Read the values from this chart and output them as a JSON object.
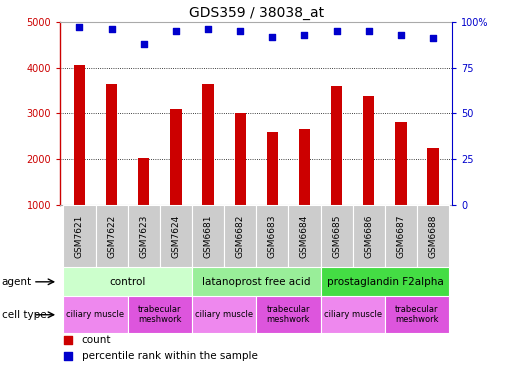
{
  "title": "GDS359 / 38038_at",
  "samples": [
    "GSM7621",
    "GSM7622",
    "GSM7623",
    "GSM7624",
    "GSM6681",
    "GSM6682",
    "GSM6683",
    "GSM6684",
    "GSM6685",
    "GSM6686",
    "GSM6687",
    "GSM6688"
  ],
  "counts": [
    4050,
    3650,
    2020,
    3100,
    3650,
    3000,
    2600,
    2650,
    3600,
    3380,
    2820,
    2250
  ],
  "percentiles": [
    97,
    96,
    88,
    95,
    96,
    95,
    92,
    93,
    95,
    95,
    93,
    91
  ],
  "bar_color": "#cc0000",
  "dot_color": "#0000cc",
  "ylim_left": [
    1000,
    5000
  ],
  "ylim_right": [
    0,
    100
  ],
  "yticks_left": [
    1000,
    2000,
    3000,
    4000,
    5000
  ],
  "yticks_right": [
    0,
    25,
    50,
    75,
    100
  ],
  "yticklabels_right": [
    "0",
    "25",
    "50",
    "75",
    "100%"
  ],
  "grid_values": [
    2000,
    3000,
    4000
  ],
  "agent_groups": [
    {
      "label": "control",
      "start": 0,
      "end": 4,
      "color": "#ccffcc"
    },
    {
      "label": "latanoprost free acid",
      "start": 4,
      "end": 8,
      "color": "#99ee99"
    },
    {
      "label": "prostaglandin F2alpha",
      "start": 8,
      "end": 12,
      "color": "#44dd44"
    }
  ],
  "cell_type_groups": [
    {
      "label": "ciliary muscle",
      "start": 0,
      "end": 2,
      "color": "#ee88ee"
    },
    {
      "label": "trabecular\nmeshwork",
      "start": 2,
      "end": 4,
      "color": "#dd55dd"
    },
    {
      "label": "ciliary muscle",
      "start": 4,
      "end": 6,
      "color": "#ee88ee"
    },
    {
      "label": "trabecular\nmeshwork",
      "start": 6,
      "end": 8,
      "color": "#dd55dd"
    },
    {
      "label": "ciliary muscle",
      "start": 8,
      "end": 10,
      "color": "#ee88ee"
    },
    {
      "label": "trabecular\nmeshwork",
      "start": 10,
      "end": 12,
      "color": "#dd55dd"
    }
  ],
  "sample_box_color": "#cccccc",
  "legend_count_color": "#cc0000",
  "legend_dot_color": "#0000cc"
}
